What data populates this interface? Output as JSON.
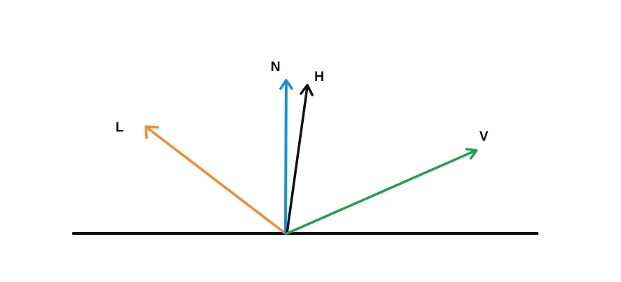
{
  "diagram": {
    "vectors": [
      {
        "id": "N",
        "label": "N",
        "color": "#1a8fd8"
      },
      {
        "id": "H",
        "label": "H",
        "color": "#111111"
      },
      {
        "id": "L",
        "label": "L",
        "color": "#f58a2e"
      },
      {
        "id": "V",
        "label": "V",
        "color": "#21a04e"
      }
    ],
    "surface_color": "#111111"
  }
}
